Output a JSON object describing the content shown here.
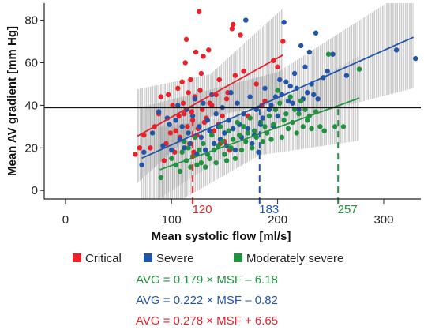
{
  "chart_data": {
    "type": "scatter",
    "title": "",
    "xlabel": "Mean systolic flow [ml/s]",
    "ylabel": "Mean AV gradient [mm Hg]",
    "xlim": [
      -20,
      335
    ],
    "ylim": [
      -4,
      88
    ],
    "x_ticks": [
      "0",
      "100",
      "200",
      "300"
    ],
    "y_ticks": [
      "0",
      "20",
      "40",
      "60",
      "80"
    ],
    "threshold_line": 39,
    "legend_position": "bottom",
    "series": [
      {
        "name": "Critical",
        "color": "#e8212b",
        "fit": {
          "slope": 0.278,
          "intercept": 6.65,
          "x_range": [
            68,
            205
          ]
        },
        "ci_band_width": [
          10,
          22
        ],
        "crossing_label": "120",
        "crossing_x": 120,
        "equation": "AVG = 0.278 × MSF + 6.65",
        "points": [
          [
            66,
            17
          ],
          [
            70,
            20
          ],
          [
            74,
            26
          ],
          [
            80,
            20
          ],
          [
            84,
            30
          ],
          [
            88,
            36
          ],
          [
            90,
            44
          ],
          [
            93,
            14
          ],
          [
            95,
            22
          ],
          [
            97,
            45
          ],
          [
            99,
            27
          ],
          [
            101,
            40
          ],
          [
            103,
            18
          ],
          [
            104,
            28
          ],
          [
            106,
            48
          ],
          [
            107,
            35
          ],
          [
            108,
            25
          ],
          [
            110,
            51
          ],
          [
            111,
            41
          ],
          [
            112,
            36
          ],
          [
            113,
            60
          ],
          [
            114,
            71
          ],
          [
            115,
            30
          ],
          [
            116,
            46
          ],
          [
            117,
            22
          ],
          [
            118,
            52
          ],
          [
            119,
            37
          ],
          [
            120,
            33
          ],
          [
            121,
            18
          ],
          [
            122,
            44
          ],
          [
            123,
            65
          ],
          [
            124,
            26
          ],
          [
            125,
            29
          ],
          [
            126,
            84
          ],
          [
            127,
            47
          ],
          [
            128,
            55
          ],
          [
            129,
            38
          ],
          [
            130,
            63
          ],
          [
            131,
            32
          ],
          [
            133,
            34
          ],
          [
            135,
            66
          ],
          [
            136,
            41
          ],
          [
            138,
            40
          ],
          [
            140,
            28
          ],
          [
            142,
            45
          ],
          [
            144,
            31
          ],
          [
            145,
            52
          ],
          [
            146,
            22
          ],
          [
            148,
            35
          ],
          [
            150,
            23
          ],
          [
            152,
            43
          ],
          [
            153,
            46
          ],
          [
            155,
            19
          ],
          [
            157,
            76
          ],
          [
            158,
            78
          ],
          [
            160,
            54
          ],
          [
            165,
            73
          ],
          [
            168,
            56
          ],
          [
            172,
            35
          ],
          [
            180,
            50
          ],
          [
            185,
            40
          ],
          [
            188,
            42
          ],
          [
            196,
            61
          ],
          [
            205,
            70
          ],
          [
            200,
            58
          ]
        ]
      },
      {
        "name": "Severe",
        "color": "#2255a8",
        "fit": {
          "slope": 0.222,
          "intercept": -0.82,
          "x_range": [
            72,
            328
          ]
        },
        "ci_band_width": [
          12,
          24
        ],
        "crossing_label": "183",
        "crossing_x": 183,
        "equation": "AVG = 0.222 × MSF –  0.82",
        "points": [
          [
            72,
            12
          ],
          [
            74,
            18
          ],
          [
            82,
            27
          ],
          [
            88,
            37
          ],
          [
            92,
            21
          ],
          [
            96,
            34
          ],
          [
            98,
            31
          ],
          [
            100,
            19
          ],
          [
            104,
            33
          ],
          [
            106,
            40
          ],
          [
            108,
            24
          ],
          [
            110,
            30
          ],
          [
            112,
            20
          ],
          [
            114,
            38
          ],
          [
            116,
            27
          ],
          [
            118,
            22
          ],
          [
            120,
            35
          ],
          [
            122,
            43
          ],
          [
            124,
            17
          ],
          [
            126,
            30
          ],
          [
            128,
            25
          ],
          [
            130,
            41
          ],
          [
            132,
            19
          ],
          [
            134,
            33
          ],
          [
            136,
            28
          ],
          [
            138,
            45
          ],
          [
            140,
            22
          ],
          [
            142,
            36
          ],
          [
            144,
            30
          ],
          [
            146,
            24
          ],
          [
            148,
            39
          ],
          [
            150,
            27
          ],
          [
            152,
            21
          ],
          [
            154,
            33
          ],
          [
            156,
            46
          ],
          [
            158,
            29
          ],
          [
            160,
            19
          ],
          [
            162,
            41
          ],
          [
            164,
            31
          ],
          [
            166,
            25
          ],
          [
            168,
            36
          ],
          [
            170,
            80
          ],
          [
            172,
            29
          ],
          [
            174,
            44
          ],
          [
            176,
            22
          ],
          [
            178,
            26
          ],
          [
            180,
            38
          ],
          [
            182,
            18
          ],
          [
            184,
            31
          ],
          [
            186,
            34
          ],
          [
            188,
            48
          ],
          [
            190,
            27
          ],
          [
            192,
            38
          ],
          [
            194,
            40
          ],
          [
            196,
            30
          ],
          [
            198,
            44
          ],
          [
            200,
            35
          ],
          [
            202,
            52
          ],
          [
            204,
            45
          ],
          [
            206,
            79
          ],
          [
            208,
            51
          ],
          [
            210,
            42
          ],
          [
            212,
            49
          ],
          [
            214,
            41
          ],
          [
            216,
            55
          ],
          [
            218,
            48
          ],
          [
            220,
            38
          ],
          [
            222,
            68
          ],
          [
            224,
            43
          ],
          [
            226,
            58
          ],
          [
            228,
            46
          ],
          [
            230,
            65
          ],
          [
            232,
            50
          ],
          [
            234,
            45
          ],
          [
            236,
            74
          ],
          [
            238,
            43
          ],
          [
            243,
            53
          ],
          [
            247,
            56
          ],
          [
            252,
            64
          ],
          [
            265,
            54
          ],
          [
            312,
            66
          ],
          [
            330,
            62
          ]
        ]
      },
      {
        "name": "Moderately severe",
        "color": "#229140",
        "fit": {
          "slope": 0.179,
          "intercept": -6.18,
          "x_range": [
            89,
            277
          ]
        },
        "ci_band_width": [
          10,
          20
        ],
        "crossing_label": "257",
        "crossing_x": 257,
        "equation": "AVG = 0.179 × MSF – 6.18",
        "points": [
          [
            90,
            6
          ],
          [
            100,
            15
          ],
          [
            104,
            12
          ],
          [
            108,
            9
          ],
          [
            110,
            18
          ],
          [
            112,
            23
          ],
          [
            114,
            14
          ],
          [
            116,
            20
          ],
          [
            118,
            11
          ],
          [
            120,
            16
          ],
          [
            122,
            25
          ],
          [
            124,
            12
          ],
          [
            126,
            19
          ],
          [
            128,
            13
          ],
          [
            130,
            22
          ],
          [
            132,
            11
          ],
          [
            134,
            17
          ],
          [
            136,
            15
          ],
          [
            138,
            26
          ],
          [
            140,
            19
          ],
          [
            142,
            13
          ],
          [
            144,
            21
          ],
          [
            146,
            30
          ],
          [
            148,
            23
          ],
          [
            150,
            17
          ],
          [
            152,
            14
          ],
          [
            154,
            28
          ],
          [
            156,
            20
          ],
          [
            158,
            24
          ],
          [
            160,
            15
          ],
          [
            162,
            32
          ],
          [
            164,
            26
          ],
          [
            166,
            19
          ],
          [
            168,
            30
          ],
          [
            170,
            23
          ],
          [
            172,
            27
          ],
          [
            174,
            34
          ],
          [
            176,
            20
          ],
          [
            178,
            28
          ],
          [
            180,
            25
          ],
          [
            184,
            32
          ],
          [
            186,
            23
          ],
          [
            188,
            30
          ],
          [
            190,
            27
          ],
          [
            192,
            35
          ],
          [
            194,
            24
          ],
          [
            196,
            31
          ],
          [
            198,
            38
          ],
          [
            200,
            47
          ],
          [
            202,
            41
          ],
          [
            204,
            25
          ],
          [
            206,
            33
          ],
          [
            208,
            36
          ],
          [
            210,
            29
          ],
          [
            212,
            44
          ],
          [
            214,
            32
          ],
          [
            216,
            38
          ],
          [
            218,
            27
          ],
          [
            220,
            36
          ],
          [
            222,
            42
          ],
          [
            224,
            30
          ],
          [
            226,
            38
          ],
          [
            228,
            33
          ],
          [
            230,
            35
          ],
          [
            232,
            29
          ],
          [
            236,
            37
          ],
          [
            240,
            30
          ],
          [
            244,
            28
          ],
          [
            248,
            64
          ],
          [
            254,
            30
          ],
          [
            262,
            30
          ],
          [
            277,
            57
          ]
        ]
      }
    ]
  }
}
